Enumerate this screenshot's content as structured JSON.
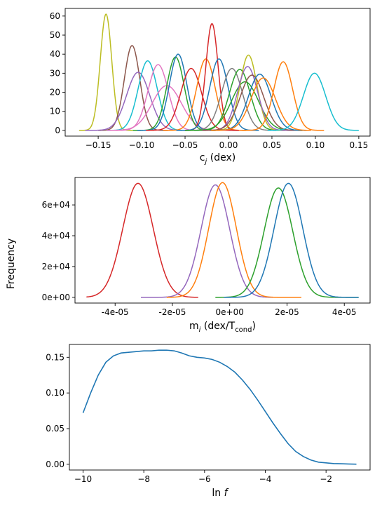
{
  "figure": {
    "shared_ylabel": "Frequency"
  },
  "chart_data": [
    {
      "type": "line",
      "xlabel": "c",
      "xlabel_sub": "j",
      "xlabel_suffix": " (dex)",
      "xlim": [
        -0.188,
        0.163
      ],
      "ylim": [
        -3.0,
        64.0
      ],
      "xticks": [
        -0.15,
        -0.1,
        -0.05,
        0.0,
        0.05,
        0.1,
        0.15
      ],
      "xtick_labels": [
        "−0.15",
        "−0.10",
        "−0.05",
        "0.00",
        "0.05",
        "0.10",
        "0.15"
      ],
      "yticks": [
        0,
        10,
        20,
        30,
        40,
        50,
        60
      ],
      "ytick_labels": [
        "0",
        "10",
        "20",
        "30",
        "40",
        "50",
        "60"
      ],
      "grid": false,
      "gaussian_series": [
        {
          "mu": -0.141,
          "sigma": 0.0066,
          "peak": 61,
          "range": [
            -0.172,
            -0.11
          ],
          "color": "#bcbd22"
        },
        {
          "mu": -0.111,
          "sigma": 0.0089,
          "peak": 44.5,
          "range": [
            -0.15,
            -0.07
          ],
          "color": "#8c564b"
        },
        {
          "mu": -0.104,
          "sigma": 0.0133,
          "peak": 30.5,
          "range": [
            -0.165,
            -0.045
          ],
          "color": "#9467bd"
        },
        {
          "mu": -0.093,
          "sigma": 0.0109,
          "peak": 36.5,
          "range": [
            -0.14,
            -0.045
          ],
          "color": "#17becf"
        },
        {
          "mu": -0.081,
          "sigma": 0.0116,
          "peak": 34.5,
          "range": [
            -0.13,
            -0.03
          ],
          "color": "#e377c2"
        },
        {
          "mu": -0.071,
          "sigma": 0.0168,
          "peak": 23.5,
          "range": [
            -0.14,
            0.0
          ],
          "color": "#e377c2"
        },
        {
          "mu": -0.061,
          "sigma": 0.01,
          "peak": 38.5,
          "range": [
            -0.11,
            -0.015
          ],
          "color": "#2ca02c"
        },
        {
          "mu": -0.058,
          "sigma": 0.01,
          "peak": 40.0,
          "range": [
            -0.105,
            -0.01
          ],
          "color": "#1f77b4"
        },
        {
          "mu": -0.043,
          "sigma": 0.012,
          "peak": 32.5,
          "range": [
            -0.095,
            0.01
          ],
          "color": "#d62728"
        },
        {
          "mu": -0.026,
          "sigma": 0.0105,
          "peak": 37.5,
          "range": [
            -0.075,
            0.02
          ],
          "color": "#ff7f0e"
        },
        {
          "mu": -0.019,
          "sigma": 0.007,
          "peak": 56.0,
          "range": [
            -0.05,
            0.012
          ],
          "color": "#d62728"
        },
        {
          "mu": -0.011,
          "sigma": 0.0105,
          "peak": 37.5,
          "range": [
            -0.06,
            0.035
          ],
          "color": "#1f77b4"
        },
        {
          "mu": 0.004,
          "sigma": 0.012,
          "peak": 32.5,
          "range": [
            -0.05,
            0.055
          ],
          "color": "#7f7f7f"
        },
        {
          "mu": 0.013,
          "sigma": 0.012,
          "peak": 32.0,
          "range": [
            -0.04,
            0.065
          ],
          "color": "#2ca02c"
        },
        {
          "mu": 0.019,
          "sigma": 0.0155,
          "peak": 25.5,
          "range": [
            -0.05,
            0.085
          ],
          "color": "#2ca02c"
        },
        {
          "mu": 0.023,
          "sigma": 0.0097,
          "peak": 39.5,
          "range": [
            -0.02,
            0.065
          ],
          "color": "#bcbd22"
        },
        {
          "mu": 0.022,
          "sigma": 0.0115,
          "peak": 33.5,
          "range": [
            -0.03,
            0.075
          ],
          "color": "#9467bd"
        },
        {
          "mu": 0.027,
          "sigma": 0.0135,
          "peak": 29.0,
          "range": [
            -0.03,
            0.085
          ],
          "color": "#8c564b"
        },
        {
          "mu": 0.036,
          "sigma": 0.013,
          "peak": 29.5,
          "range": [
            -0.02,
            0.09
          ],
          "color": "#1f77b4"
        },
        {
          "mu": 0.04,
          "sigma": 0.014,
          "peak": 27.5,
          "range": [
            -0.02,
            0.095
          ],
          "color": "#ff7f0e"
        },
        {
          "mu": 0.063,
          "sigma": 0.0107,
          "peak": 36.0,
          "range": [
            0.015,
            0.11
          ],
          "color": "#ff7f0e"
        },
        {
          "mu": 0.099,
          "sigma": 0.0128,
          "peak": 30.0,
          "range": [
            0.045,
            0.15
          ],
          "color": "#17becf"
        }
      ]
    },
    {
      "type": "line",
      "xlabel": "m",
      "xlabel_sub": "i",
      "xlabel_suffix": " (dex/T",
      "xlabel_sub2": "cond",
      "xlabel_end": ")",
      "xlim": [
        -5.4e-05,
        4.9e-05
      ],
      "ylim": [
        -3700,
        77800
      ],
      "xticks": [
        -4e-05,
        -2e-05,
        0,
        2e-05,
        4e-05
      ],
      "xtick_labels": [
        "-4e-05",
        "-2e-05",
        "0e+00",
        "2e-05",
        "4e-05"
      ],
      "yticks": [
        0,
        20000,
        40000,
        60000
      ],
      "ytick_labels": [
        "0e+00",
        "2e+04",
        "4e+04",
        "6e+04"
      ],
      "grid": false,
      "gaussian_series": [
        {
          "mu": -3.2e-05,
          "sigma": 5.3e-06,
          "peak": 74000,
          "range": [
            -5e-05,
            -1.1e-05
          ],
          "color": "#d62728"
        },
        {
          "mu": -5e-06,
          "sigma": 5e-06,
          "peak": 73000,
          "range": [
            -3.1e-05,
            1.5e-05
          ],
          "color": "#9467bd"
        },
        {
          "mu": -2.5e-06,
          "sigma": 4.8e-06,
          "peak": 74500,
          "range": [
            -2.2e-05,
            2.5e-05
          ],
          "color": "#ff7f0e"
        },
        {
          "mu": 1.7e-05,
          "sigma": 5e-06,
          "peak": 71000,
          "range": [
            -5e-06,
            4.5e-05
          ],
          "color": "#2ca02c"
        },
        {
          "mu": 2.05e-05,
          "sigma": 5e-06,
          "peak": 74000,
          "range": [
            -2e-06,
            4.5e-05
          ],
          "color": "#1f77b4"
        }
      ]
    },
    {
      "type": "line",
      "xlabel": "ln ",
      "xlabel_italic": "f",
      "xlim": [
        -10.45,
        -0.55
      ],
      "ylim": [
        -0.008,
        0.168
      ],
      "xticks": [
        -10,
        -8,
        -6,
        -4,
        -2
      ],
      "xtick_labels": [
        "−10",
        "−8",
        "−6",
        "−4",
        "−2"
      ],
      "yticks": [
        0.0,
        0.05,
        0.1,
        0.15
      ],
      "ytick_labels": [
        "0.00",
        "0.05",
        "0.10",
        "0.15"
      ],
      "grid": false,
      "series": [
        {
          "color": "#1f77b4",
          "x": [
            -10.0,
            -9.75,
            -9.5,
            -9.25,
            -9.0,
            -8.75,
            -8.5,
            -8.25,
            -8.0,
            -7.75,
            -7.5,
            -7.25,
            -7.0,
            -6.75,
            -6.5,
            -6.25,
            -6.0,
            -5.75,
            -5.5,
            -5.25,
            -5.0,
            -4.75,
            -4.5,
            -4.25,
            -4.0,
            -3.75,
            -3.5,
            -3.25,
            -3.0,
            -2.75,
            -2.5,
            -2.25,
            -2.0,
            -1.75,
            -1.5,
            -1.25,
            -1.0
          ],
          "y": [
            0.072,
            0.1,
            0.125,
            0.143,
            0.152,
            0.156,
            0.157,
            0.158,
            0.159,
            0.159,
            0.16,
            0.16,
            0.159,
            0.156,
            0.152,
            0.15,
            0.149,
            0.147,
            0.143,
            0.137,
            0.129,
            0.118,
            0.105,
            0.09,
            0.074,
            0.058,
            0.043,
            0.029,
            0.018,
            0.011,
            0.006,
            0.003,
            0.002,
            0.001,
            0.0008,
            0.0004,
            0.0002
          ]
        }
      ]
    }
  ]
}
